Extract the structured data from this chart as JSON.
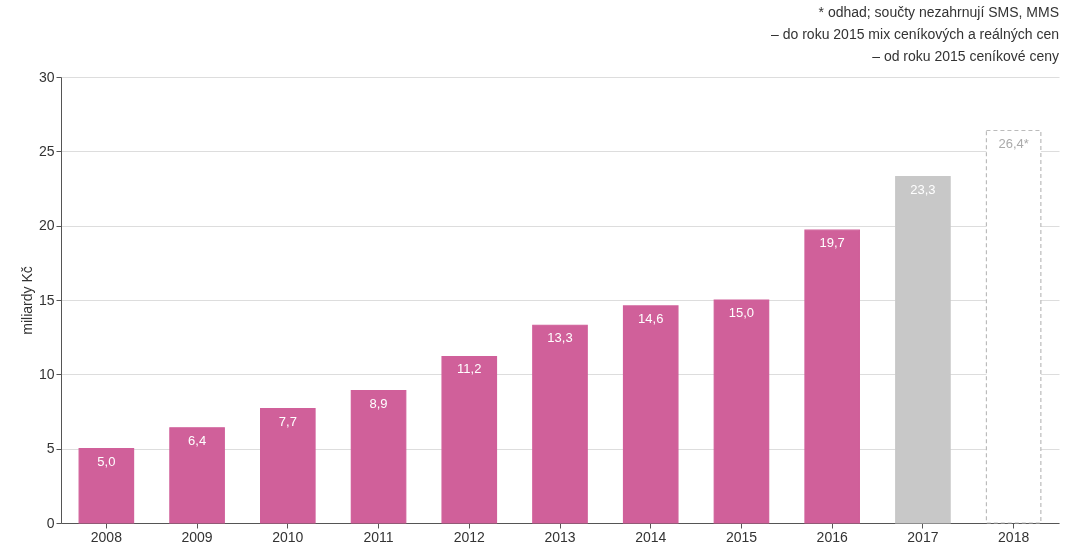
{
  "chart_data": {
    "type": "bar",
    "ylabel": "miliardy Kč",
    "annotations": [
      "* odhad; součty nezahrnují SMS, MMS",
      "– do roku 2015 mix ceníkových a reálných cen",
      "– od roku 2015 ceníkové ceny"
    ],
    "categories": [
      "2008",
      "2009",
      "2010",
      "2011",
      "2012",
      "2013",
      "2014",
      "2015",
      "2016",
      "2017",
      "2018"
    ],
    "values": [
      5.0,
      6.4,
      7.7,
      8.9,
      11.2,
      13.3,
      14.6,
      15.0,
      19.7,
      23.3,
      26.4
    ],
    "colors": [
      "#d0609a",
      "#d0609a",
      "#d0609a",
      "#d0609a",
      "#d0609a",
      "#d0609a",
      "#d0609a",
      "#d0609a",
      "#d0609a",
      "#c8c8c8",
      "#ffffff"
    ],
    "value_labels": [
      "5,0",
      "6,4",
      "7,7",
      "8,9",
      "11,2",
      "13,3",
      "14,6",
      "15,0",
      "19,7",
      "23,3",
      "26,4*"
    ],
    "ylim": [
      0,
      30
    ],
    "yticks": [
      0,
      5,
      10,
      15,
      20,
      25,
      30
    ],
    "grid": "y"
  }
}
